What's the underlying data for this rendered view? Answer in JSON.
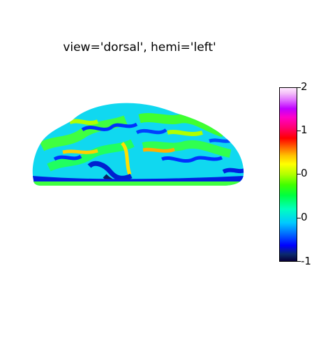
{
  "title": "view='dorsal', hemi='left'",
  "colorbar": {
    "tick_labels": [
      "2",
      "1",
      "0",
      "0",
      "-1"
    ]
  },
  "colors": {
    "background": "#ffffff",
    "cbar_low": "#08003a",
    "cbar_high": "#ffe8ff"
  }
}
